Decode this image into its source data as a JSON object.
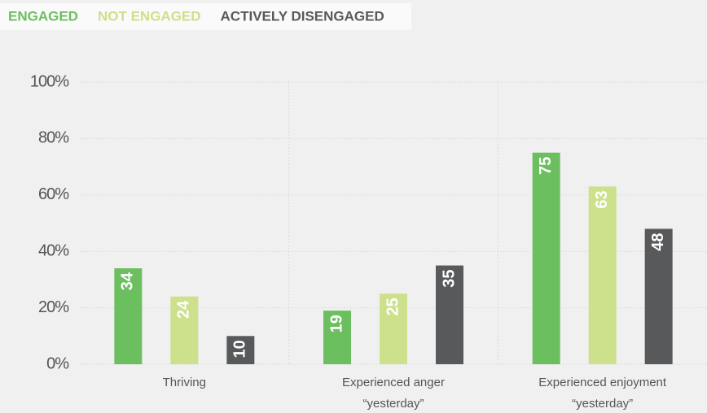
{
  "chart_data": {
    "type": "bar",
    "categories": [
      [
        "Thriving"
      ],
      [
        "Experienced anger",
        "“yesterday”"
      ],
      [
        "Experienced enjoyment",
        "“yesterday”"
      ]
    ],
    "series": [
      {
        "name": "ENGAGED",
        "color": "#6cbf5f",
        "values": [
          34,
          19,
          75
        ]
      },
      {
        "name": "NOT ENGAGED",
        "color": "#cde08b",
        "values": [
          24,
          25,
          63
        ]
      },
      {
        "name": "ACTIVELY DISENGAGED",
        "color": "#58595b",
        "values": [
          10,
          35,
          48
        ]
      }
    ],
    "ylim": [
      0,
      100
    ],
    "yticks": [
      {
        "value": 0,
        "label": "0%"
      },
      {
        "value": 20,
        "label": "20%"
      },
      {
        "value": 40,
        "label": "40%"
      },
      {
        "value": 60,
        "label": "60%"
      },
      {
        "value": 80,
        "label": "80%"
      },
      {
        "value": 100,
        "label": "100%"
      }
    ],
    "grid": true
  }
}
